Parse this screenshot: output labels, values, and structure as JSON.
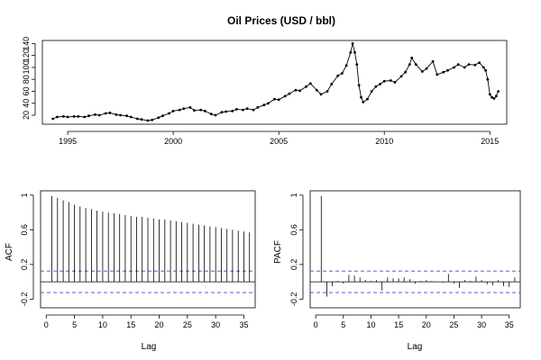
{
  "chart_data": [
    {
      "type": "line",
      "title": "Oil Prices (USD / bbl)",
      "xlabel": "",
      "ylabel": "",
      "xlim": [
        1993.8,
        2015.8
      ],
      "ylim": [
        5,
        145
      ],
      "x_ticks": [
        1995,
        2000,
        2005,
        2010,
        2015
      ],
      "y_ticks": [
        20,
        40,
        60,
        80,
        100,
        120,
        140
      ],
      "grid": false,
      "markers": true,
      "x": [
        1994.3,
        1994.5,
        1994.8,
        1995.0,
        1995.3,
        1995.5,
        1995.8,
        1996.0,
        1996.3,
        1996.5,
        1996.8,
        1997.0,
        1997.3,
        1997.5,
        1997.8,
        1998.0,
        1998.3,
        1998.5,
        1998.8,
        1999.0,
        1999.3,
        1999.5,
        1999.8,
        2000.0,
        2000.3,
        2000.5,
        2000.8,
        2001.0,
        2001.3,
        2001.5,
        2001.8,
        2002.0,
        2002.3,
        2002.5,
        2002.8,
        2003.0,
        2003.3,
        2003.5,
        2003.8,
        2004.0,
        2004.3,
        2004.5,
        2004.8,
        2005.0,
        2005.3,
        2005.5,
        2005.8,
        2006.0,
        2006.3,
        2006.5,
        2006.8,
        2007.0,
        2007.3,
        2007.5,
        2007.8,
        2008.0,
        2008.2,
        2008.4,
        2008.5,
        2008.6,
        2008.7,
        2008.8,
        2008.9,
        2009.0,
        2009.2,
        2009.4,
        2009.6,
        2009.8,
        2010.0,
        2010.3,
        2010.5,
        2010.8,
        2011.0,
        2011.2,
        2011.3,
        2011.5,
        2011.8,
        2012.0,
        2012.3,
        2012.5,
        2012.8,
        2013.0,
        2013.3,
        2013.5,
        2013.8,
        2014.0,
        2014.3,
        2014.5,
        2014.7,
        2014.8,
        2014.9,
        2015.0,
        2015.1,
        2015.2,
        2015.3,
        2015.4
      ],
      "values": [
        14,
        17,
        18,
        17,
        18,
        18,
        17,
        19,
        21,
        20,
        23,
        24,
        21,
        20,
        19,
        17,
        14,
        13,
        11,
        12,
        16,
        19,
        23,
        27,
        29,
        31,
        33,
        28,
        29,
        27,
        22,
        20,
        25,
        26,
        27,
        30,
        29,
        31,
        29,
        33,
        37,
        40,
        47,
        46,
        52,
        56,
        62,
        61,
        68,
        73,
        62,
        55,
        60,
        72,
        86,
        90,
        103,
        125,
        140,
        125,
        105,
        70,
        50,
        42,
        47,
        60,
        68,
        72,
        77,
        78,
        75,
        85,
        92,
        105,
        116,
        105,
        93,
        98,
        110,
        88,
        92,
        95,
        100,
        105,
        100,
        105,
        104,
        108,
        100,
        95,
        80,
        55,
        50,
        48,
        52,
        60
      ]
    },
    {
      "type": "bar",
      "title": "",
      "xlabel": "Lag",
      "ylabel": "ACF",
      "xlim": [
        -1,
        37
      ],
      "ylim": [
        -0.3,
        1.05
      ],
      "x_ticks": [
        0,
        5,
        10,
        15,
        20,
        25,
        30,
        35
      ],
      "y_ticks": [
        -0.2,
        0.2,
        0.6,
        1.0
      ],
      "ci": 0.124,
      "grid": false,
      "lags": [
        1,
        2,
        3,
        4,
        5,
        6,
        7,
        8,
        9,
        10,
        11,
        12,
        13,
        14,
        15,
        16,
        17,
        18,
        19,
        20,
        21,
        22,
        23,
        24,
        25,
        26,
        27,
        28,
        29,
        30,
        31,
        32,
        33,
        34,
        35,
        36
      ],
      "values": [
        0.99,
        0.97,
        0.94,
        0.92,
        0.89,
        0.87,
        0.85,
        0.84,
        0.82,
        0.81,
        0.8,
        0.79,
        0.78,
        0.77,
        0.76,
        0.75,
        0.75,
        0.74,
        0.73,
        0.72,
        0.72,
        0.71,
        0.7,
        0.69,
        0.68,
        0.67,
        0.66,
        0.65,
        0.64,
        0.63,
        0.62,
        0.61,
        0.6,
        0.59,
        0.58,
        0.57
      ]
    },
    {
      "type": "bar",
      "title": "",
      "xlabel": "Lag",
      "ylabel": "PACF",
      "xlim": [
        -1,
        37
      ],
      "ylim": [
        -0.3,
        1.05
      ],
      "x_ticks": [
        0,
        5,
        10,
        15,
        20,
        25,
        30,
        35
      ],
      "y_ticks": [
        -0.2,
        0.2,
        0.6,
        1.0
      ],
      "ci": 0.124,
      "grid": false,
      "lags": [
        1,
        2,
        3,
        4,
        5,
        6,
        7,
        8,
        9,
        10,
        11,
        12,
        13,
        14,
        15,
        16,
        17,
        18,
        19,
        20,
        21,
        22,
        23,
        24,
        25,
        26,
        27,
        28,
        29,
        30,
        31,
        32,
        33,
        34,
        35,
        36
      ],
      "values": [
        0.99,
        -0.17,
        -0.05,
        0.01,
        -0.02,
        0.08,
        0.07,
        0.05,
        0.02,
        0.01,
        0.02,
        -0.1,
        0.05,
        0.04,
        0.04,
        0.05,
        0.03,
        -0.02,
        0.01,
        0.02,
        0.01,
        0.0,
        -0.01,
        0.09,
        -0.02,
        -0.07,
        0.02,
        0.01,
        0.06,
        0.02,
        -0.03,
        -0.04,
        0.02,
        -0.05,
        -0.06,
        0.05
      ]
    }
  ]
}
